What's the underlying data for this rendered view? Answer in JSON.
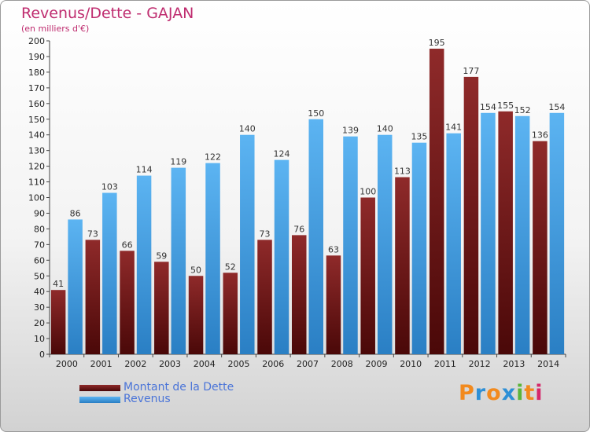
{
  "header": {
    "title": "Revenus/Dette - GAJAN",
    "subtitle": "(en milliers d'€)"
  },
  "chart_data": {
    "type": "bar",
    "title": "Revenus/Dette - GAJAN",
    "subtitle": "(en milliers d'€)",
    "xlabel": "",
    "ylabel": "",
    "ylim": [
      0,
      200
    ],
    "ytick_step": 10,
    "grid": false,
    "legend_position": "bottom-left",
    "categories": [
      "2000",
      "2001",
      "2002",
      "2003",
      "2004",
      "2005",
      "2006",
      "2007",
      "2008",
      "2009",
      "2010",
      "2011",
      "2012",
      "2013",
      "2014"
    ],
    "series": [
      {
        "name": "Montant de la Dette",
        "color": "#7a1f1f",
        "values": [
          41,
          73,
          66,
          59,
          50,
          52,
          73,
          76,
          63,
          100,
          113,
          195,
          177,
          155,
          136
        ]
      },
      {
        "name": "Revenus",
        "color": "#4aa3e6",
        "values": [
          86,
          103,
          114,
          119,
          122,
          140,
          124,
          150,
          139,
          140,
          135,
          141,
          154,
          152,
          154
        ]
      }
    ]
  },
  "legend": {
    "items": [
      {
        "label": "Montant de la Dette",
        "color": "#7a1f1f"
      },
      {
        "label": "Revenus",
        "color": "#4aa3e6"
      }
    ]
  },
  "logo": {
    "letters": [
      "P",
      "r",
      "o",
      "x",
      "i",
      "t",
      "i"
    ],
    "colors": [
      "#f28a1e",
      "#2d8fd6",
      "#f28a1e",
      "#2d8fd6",
      "#5bb53a",
      "#f28a1e",
      "#d6286b"
    ]
  }
}
